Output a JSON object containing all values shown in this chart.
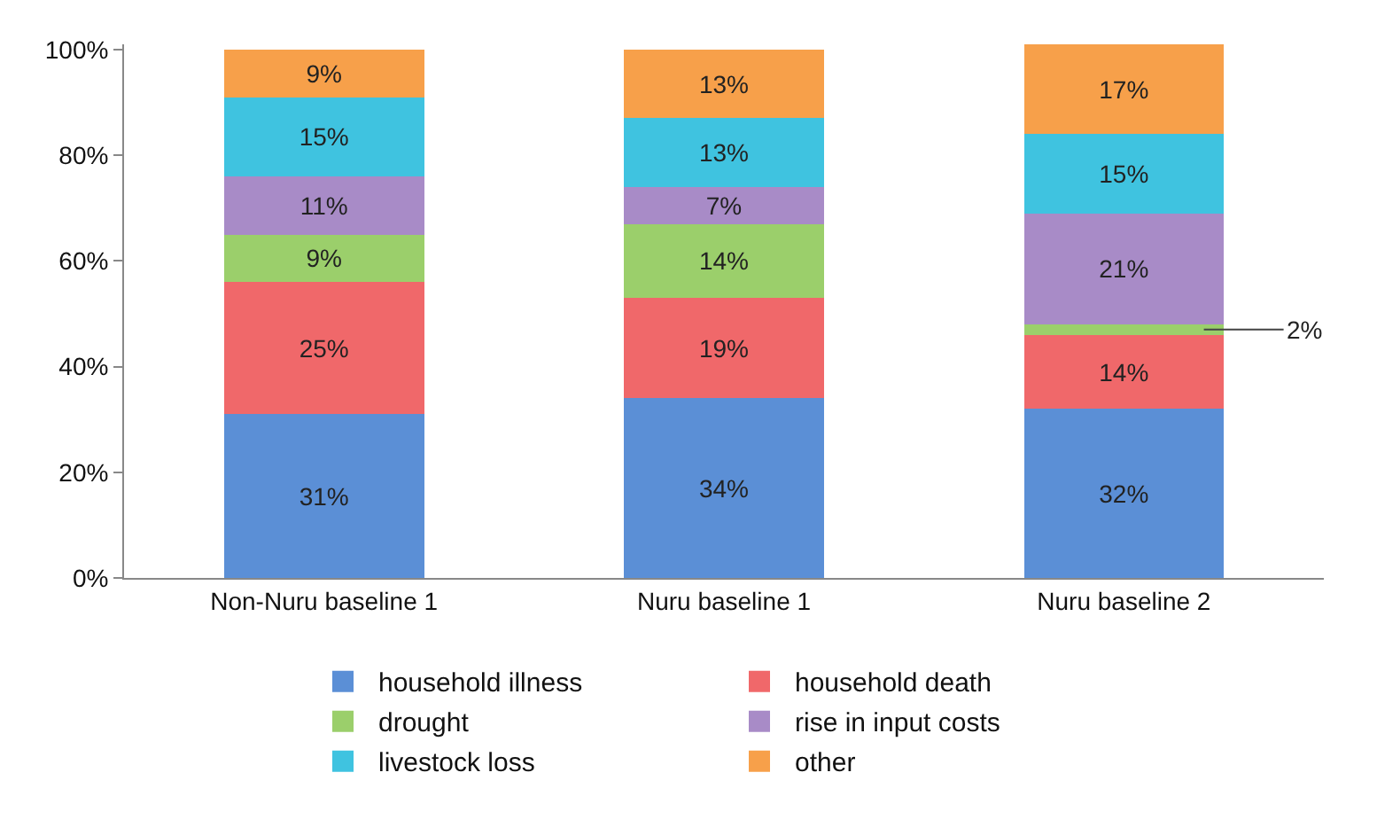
{
  "chart_data": {
    "type": "bar",
    "stacked": true,
    "categories": [
      "Non-Nuru baseline 1",
      "Nuru baseline 1",
      "Nuru baseline 2"
    ],
    "series": [
      {
        "name": "household illness",
        "color": "#5b8fd6",
        "values": [
          31,
          34,
          32
        ],
        "value_labels": [
          "31%",
          "34%",
          "32%"
        ]
      },
      {
        "name": "household death",
        "color": "#f0686a",
        "values": [
          25,
          19,
          14
        ],
        "value_labels": [
          "25%",
          "19%",
          "14%"
        ]
      },
      {
        "name": "drought",
        "color": "#9bcf6b",
        "values": [
          9,
          14,
          2
        ],
        "value_labels": [
          "9%",
          "14%",
          "2%"
        ]
      },
      {
        "name": "rise in input costs",
        "color": "#a88bc7",
        "values": [
          11,
          7,
          21
        ],
        "value_labels": [
          "11%",
          "7%",
          "21%"
        ]
      },
      {
        "name": "livestock loss",
        "color": "#3fc3e0",
        "values": [
          15,
          13,
          15
        ],
        "value_labels": [
          "15%",
          "13%",
          "15%"
        ]
      },
      {
        "name": "other",
        "color": "#f7a04a",
        "values": [
          9,
          13,
          17
        ],
        "value_labels": [
          "9%",
          "13%",
          "17%"
        ]
      }
    ],
    "ylim": [
      0,
      101
    ],
    "yticks": [
      {
        "value": 0,
        "label": "0%"
      },
      {
        "value": 20,
        "label": "20%"
      },
      {
        "value": 40,
        "label": "40%"
      },
      {
        "value": 60,
        "label": "60%"
      },
      {
        "value": 80,
        "label": "80%"
      },
      {
        "value": 100,
        "label": "100%"
      }
    ],
    "grid": false,
    "legend": "bottom"
  }
}
